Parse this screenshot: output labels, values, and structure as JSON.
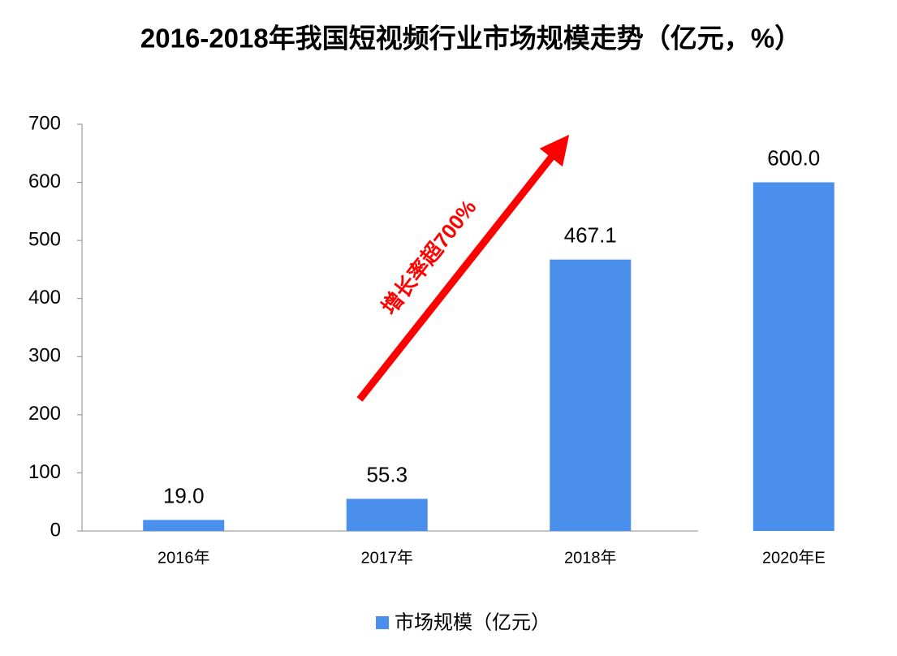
{
  "chart_data": {
    "type": "bar",
    "title": "2016-2018年我国短视频行业市场规模走势（亿元，%）",
    "categories": [
      "2016年",
      "2017年",
      "2018年",
      "2020年E"
    ],
    "series": [
      {
        "name": "市场规模（亿元）",
        "color": "#4a8fec",
        "values": [
          19,
          55.3,
          467.1,
          600
        ],
        "value_labels": [
          "19.0",
          "55.3",
          "467.1",
          "600.0"
        ]
      }
    ],
    "ylim": [
      0,
      700
    ],
    "yticks": [
      0,
      100,
      200,
      300,
      400,
      500,
      600,
      700
    ],
    "annotation": "增长率超700%",
    "legend": "bottom"
  }
}
